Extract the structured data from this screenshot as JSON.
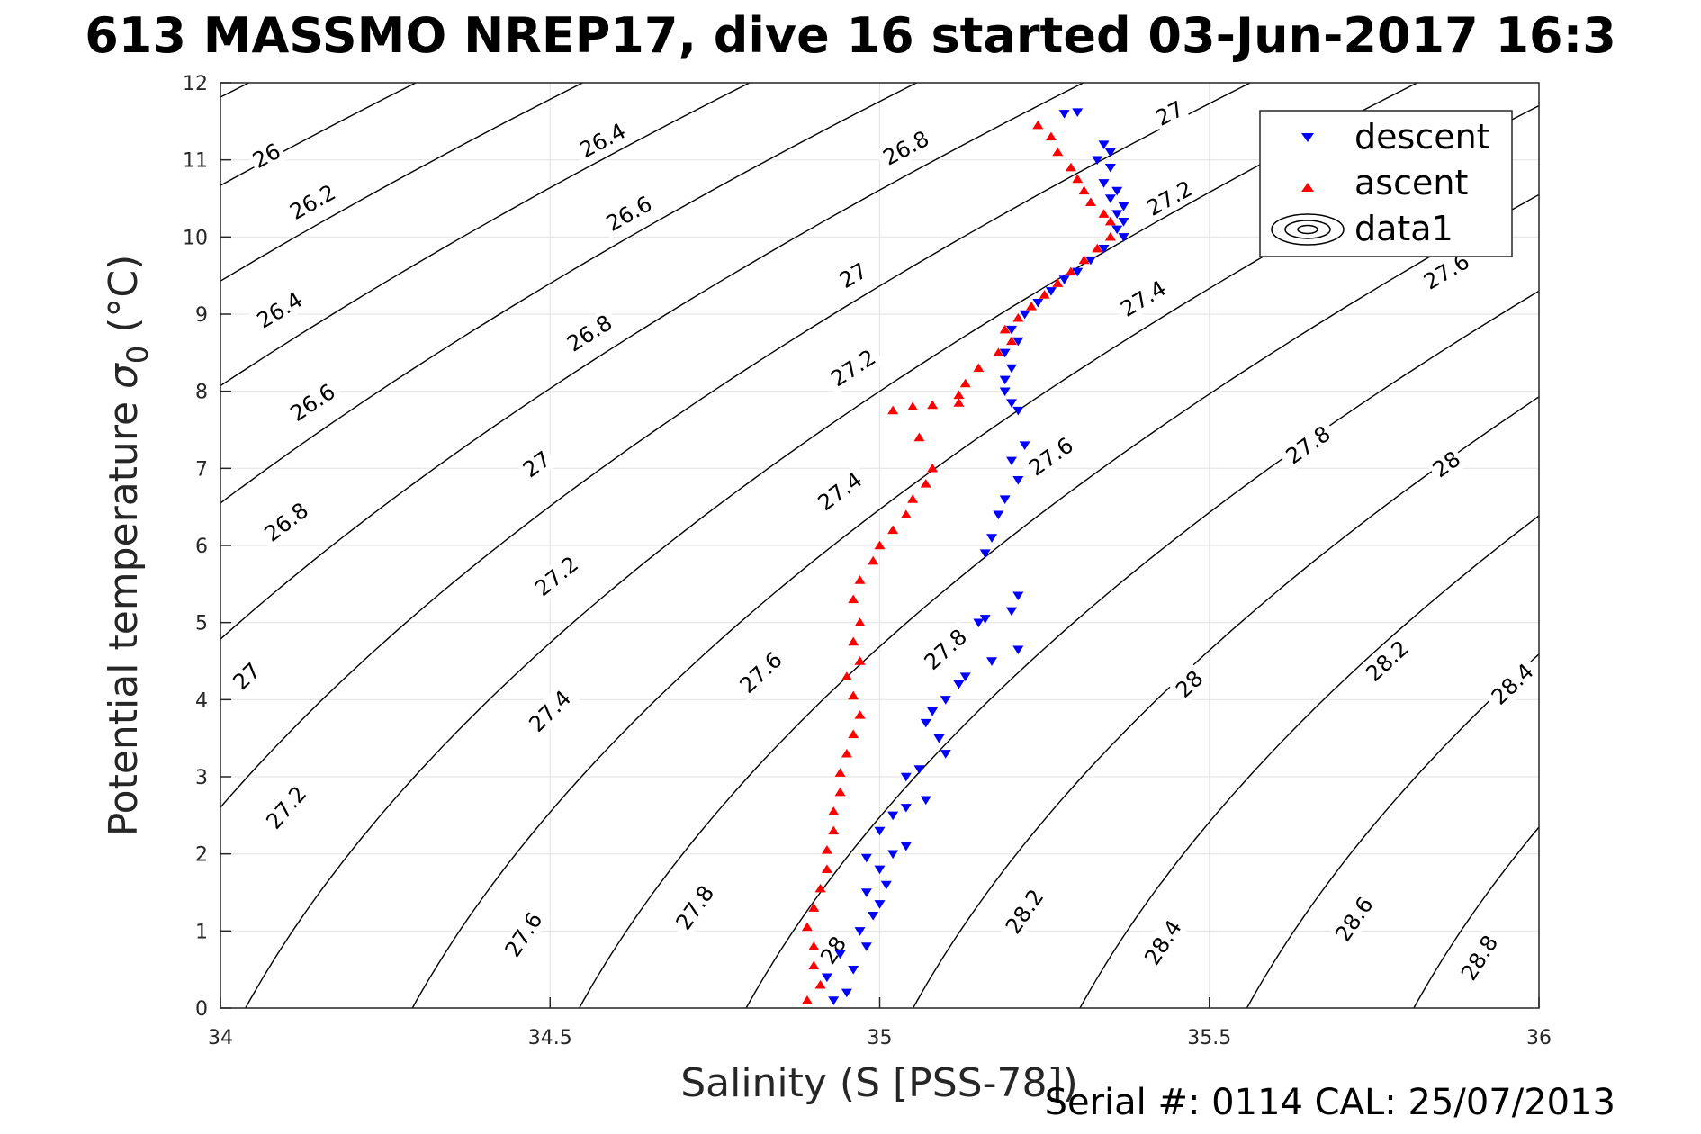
{
  "title": "613 MASSMO NREP17, dive 16 started 03-Jun-2017 16:3",
  "footer": "Serial #: 0114  CAL: 25/07/2013",
  "chart_data": {
    "type": "scatter",
    "xlabel": "Salinity (S [PSS-78])",
    "ylabel_main": "Potential temperature ",
    "ylabel_sigma": "σ",
    "ylabel_sub": "0",
    "ylabel_unit": " (°C)",
    "xlim": [
      34,
      36
    ],
    "ylim": [
      0,
      12
    ],
    "x_ticks": [
      34,
      34.5,
      35,
      35.5,
      36
    ],
    "x_tick_labels": [
      "34",
      "34.5",
      "35",
      "35.5",
      "36"
    ],
    "y_ticks": [
      0,
      1,
      2,
      3,
      4,
      5,
      6,
      7,
      8,
      9,
      10,
      11,
      12
    ],
    "y_tick_labels": [
      "0",
      "1",
      "2",
      "3",
      "4",
      "5",
      "6",
      "7",
      "8",
      "9",
      "10",
      "11",
      "12"
    ],
    "grid": true,
    "legend_position": "top-right",
    "legend": [
      "descent",
      "ascent",
      "data1"
    ],
    "colors": {
      "descent": "#0000ff",
      "ascent": "#ff0000",
      "contour": "#000000",
      "grid": "#e6e6e6"
    },
    "contour_levels": [
      25.8,
      26.0,
      26.2,
      26.4,
      26.6,
      26.8,
      27.0,
      27.2,
      27.4,
      27.6,
      27.8,
      28.0,
      28.2,
      28.4,
      28.6,
      28.8
    ],
    "contour_labels": [
      {
        "text": "26",
        "s": 34.07,
        "t": 11.05
      },
      {
        "text": "26.2",
        "s": 34.14,
        "t": 10.45
      },
      {
        "text": "26.4",
        "s": 34.09,
        "t": 9.05
      },
      {
        "text": "26.6",
        "s": 34.14,
        "t": 7.85
      },
      {
        "text": "26.8",
        "s": 34.1,
        "t": 6.3
      },
      {
        "text": "27",
        "s": 34.04,
        "t": 4.3
      },
      {
        "text": "27.2",
        "s": 34.1,
        "t": 2.6
      },
      {
        "text": "26.4",
        "s": 34.58,
        "t": 11.25
      },
      {
        "text": "26.6",
        "s": 34.62,
        "t": 10.3
      },
      {
        "text": "26.8",
        "s": 34.56,
        "t": 8.75
      },
      {
        "text": "27",
        "s": 34.48,
        "t": 7.05
      },
      {
        "text": "27.2",
        "s": 34.51,
        "t": 5.6
      },
      {
        "text": "27.4",
        "s": 34.5,
        "t": 3.85
      },
      {
        "text": "27.6",
        "s": 34.46,
        "t": 0.95
      },
      {
        "text": "26.8",
        "s": 35.04,
        "t": 11.15
      },
      {
        "text": "27",
        "s": 34.96,
        "t": 9.5
      },
      {
        "text": "27.2",
        "s": 34.96,
        "t": 8.3
      },
      {
        "text": "27.4",
        "s": 34.94,
        "t": 6.7
      },
      {
        "text": "27.6",
        "s": 34.82,
        "t": 4.35
      },
      {
        "text": "27.8",
        "s": 34.72,
        "t": 1.3
      },
      {
        "text": "27",
        "s": 35.44,
        "t": 11.6
      },
      {
        "text": "27.2",
        "s": 35.44,
        "t": 10.5
      },
      {
        "text": "27.4",
        "s": 35.4,
        "t": 9.2
      },
      {
        "text": "27.6",
        "s": 35.26,
        "t": 7.15
      },
      {
        "text": "27.8",
        "s": 35.1,
        "t": 4.65
      },
      {
        "text": "28",
        "s": 34.93,
        "t": 0.75
      },
      {
        "text": "27.6",
        "s": 35.86,
        "t": 9.55
      },
      {
        "text": "27.8",
        "s": 35.65,
        "t": 7.3
      },
      {
        "text": "28",
        "s": 35.47,
        "t": 4.2
      },
      {
        "text": "28.2",
        "s": 35.22,
        "t": 1.25
      },
      {
        "text": "28",
        "s": 35.86,
        "t": 7.05
      },
      {
        "text": "28.2",
        "s": 35.77,
        "t": 4.5
      },
      {
        "text": "28.4",
        "s": 35.43,
        "t": 0.85
      },
      {
        "text": "28.4",
        "s": 35.96,
        "t": 4.2
      },
      {
        "text": "28.6",
        "s": 35.72,
        "t": 1.15
      },
      {
        "text": "28.8",
        "s": 35.91,
        "t": 0.65
      }
    ],
    "series": [
      {
        "name": "descent",
        "marker": "triangle-down",
        "points": [
          [
            35.28,
            11.6
          ],
          [
            35.3,
            11.62
          ],
          [
            35.34,
            11.2
          ],
          [
            35.35,
            11.1
          ],
          [
            35.33,
            11.0
          ],
          [
            35.35,
            10.9
          ],
          [
            35.34,
            10.7
          ],
          [
            35.36,
            10.6
          ],
          [
            35.35,
            10.5
          ],
          [
            35.37,
            10.4
          ],
          [
            35.36,
            10.3
          ],
          [
            35.37,
            10.2
          ],
          [
            35.36,
            10.1
          ],
          [
            35.37,
            10.0
          ],
          [
            35.34,
            9.85
          ],
          [
            35.32,
            9.7
          ],
          [
            35.3,
            9.55
          ],
          [
            35.28,
            9.45
          ],
          [
            35.26,
            9.3
          ],
          [
            35.24,
            9.15
          ],
          [
            35.22,
            9.0
          ],
          [
            35.2,
            8.8
          ],
          [
            35.21,
            8.65
          ],
          [
            35.19,
            8.5
          ],
          [
            35.2,
            8.3
          ],
          [
            35.19,
            8.15
          ],
          [
            35.19,
            8.0
          ],
          [
            35.2,
            7.85
          ],
          [
            35.21,
            7.75
          ],
          [
            35.22,
            7.3
          ],
          [
            35.2,
            7.1
          ],
          [
            35.21,
            6.85
          ],
          [
            35.19,
            6.6
          ],
          [
            35.18,
            6.4
          ],
          [
            35.17,
            6.1
          ],
          [
            35.16,
            5.9
          ],
          [
            35.21,
            5.35
          ],
          [
            35.2,
            5.15
          ],
          [
            35.16,
            5.05
          ],
          [
            35.15,
            5.0
          ],
          [
            35.21,
            4.65
          ],
          [
            35.17,
            4.5
          ],
          [
            35.13,
            4.3
          ],
          [
            35.12,
            4.2
          ],
          [
            35.1,
            4.0
          ],
          [
            35.08,
            3.85
          ],
          [
            35.07,
            3.7
          ],
          [
            35.09,
            3.5
          ],
          [
            35.1,
            3.3
          ],
          [
            35.06,
            3.1
          ],
          [
            35.04,
            3.0
          ],
          [
            35.07,
            2.7
          ],
          [
            35.04,
            2.6
          ],
          [
            35.02,
            2.5
          ],
          [
            35.0,
            2.3
          ],
          [
            35.04,
            2.1
          ],
          [
            35.02,
            2.0
          ],
          [
            34.98,
            1.95
          ],
          [
            35.0,
            1.8
          ],
          [
            35.01,
            1.6
          ],
          [
            34.98,
            1.5
          ],
          [
            35.0,
            1.35
          ],
          [
            34.99,
            1.2
          ],
          [
            34.97,
            1.0
          ],
          [
            34.98,
            0.8
          ],
          [
            34.94,
            0.7
          ],
          [
            34.96,
            0.5
          ],
          [
            34.92,
            0.4
          ],
          [
            34.95,
            0.2
          ],
          [
            34.93,
            0.1
          ]
        ]
      },
      {
        "name": "ascent",
        "marker": "triangle-up",
        "points": [
          [
            35.24,
            11.45
          ],
          [
            35.26,
            11.3
          ],
          [
            35.27,
            11.1
          ],
          [
            35.29,
            10.9
          ],
          [
            35.3,
            10.75
          ],
          [
            35.31,
            10.6
          ],
          [
            35.32,
            10.45
          ],
          [
            35.34,
            10.3
          ],
          [
            35.35,
            10.2
          ],
          [
            35.35,
            10.0
          ],
          [
            35.33,
            9.85
          ],
          [
            35.31,
            9.7
          ],
          [
            35.29,
            9.55
          ],
          [
            35.27,
            9.4
          ],
          [
            35.25,
            9.25
          ],
          [
            35.23,
            9.1
          ],
          [
            35.21,
            8.95
          ],
          [
            35.19,
            8.8
          ],
          [
            35.2,
            8.65
          ],
          [
            35.18,
            8.5
          ],
          [
            35.15,
            8.3
          ],
          [
            35.13,
            8.1
          ],
          [
            35.12,
            7.95
          ],
          [
            35.12,
            7.85
          ],
          [
            35.08,
            7.82
          ],
          [
            35.05,
            7.8
          ],
          [
            35.02,
            7.75
          ],
          [
            35.06,
            7.4
          ],
          [
            35.08,
            7.0
          ],
          [
            35.07,
            6.8
          ],
          [
            35.05,
            6.6
          ],
          [
            35.04,
            6.4
          ],
          [
            35.02,
            6.2
          ],
          [
            35.0,
            6.0
          ],
          [
            34.99,
            5.8
          ],
          [
            34.97,
            5.55
          ],
          [
            34.96,
            5.3
          ],
          [
            34.97,
            5.0
          ],
          [
            34.96,
            4.75
          ],
          [
            34.97,
            4.5
          ],
          [
            34.95,
            4.3
          ],
          [
            34.96,
            4.05
          ],
          [
            34.97,
            3.8
          ],
          [
            34.96,
            3.55
          ],
          [
            34.95,
            3.3
          ],
          [
            34.94,
            3.05
          ],
          [
            34.94,
            2.8
          ],
          [
            34.93,
            2.55
          ],
          [
            34.93,
            2.3
          ],
          [
            34.92,
            2.05
          ],
          [
            34.92,
            1.8
          ],
          [
            34.91,
            1.55
          ],
          [
            34.9,
            1.3
          ],
          [
            34.89,
            1.05
          ],
          [
            34.9,
            0.8
          ],
          [
            34.9,
            0.55
          ],
          [
            34.91,
            0.3
          ],
          [
            34.89,
            0.1
          ]
        ]
      }
    ]
  }
}
